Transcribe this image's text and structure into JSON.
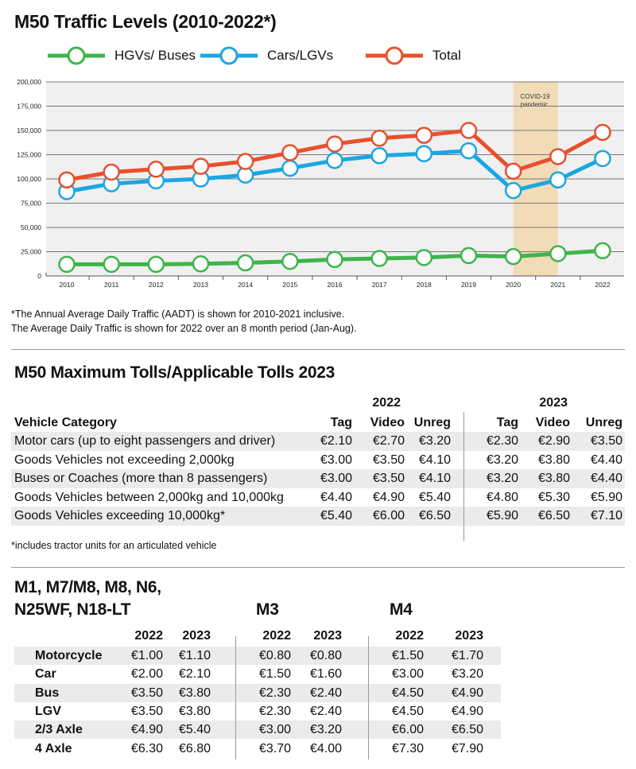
{
  "title": "M50 Traffic Levels (2010-2022*)",
  "colors": {
    "hgv": "#3db54a",
    "cars": "#1ba6e2",
    "total": "#e8502d",
    "plot_bg": "#f0f0f0",
    "covid_band": "#f2dcb8",
    "stripe": "#ebebeb"
  },
  "chart_data": {
    "type": "line",
    "title": "M50 Traffic Levels (2010-2022*)",
    "x": [
      2010,
      2011,
      2012,
      2013,
      2014,
      2015,
      2016,
      2017,
      2018,
      2019,
      2020,
      2021,
      2022
    ],
    "x_tick_labels": [
      "2010",
      "2011",
      "2012",
      "2013",
      "2014",
      "2015",
      "2016",
      "2017",
      "2018",
      "2019",
      "2020",
      "2021",
      "2022"
    ],
    "y_tick_labels": [
      "0",
      "25,000",
      "50,000",
      "75,000",
      "100,000",
      "125,000",
      "150,000",
      "175,000",
      "200,000"
    ],
    "ylim": [
      0,
      200000
    ],
    "grid": true,
    "legend_position": "top",
    "series": [
      {
        "name": "HGVs/ Buses",
        "color": "#3db54a",
        "values": [
          12000,
          12000,
          12000,
          12500,
          13500,
          15000,
          17000,
          18000,
          19000,
          21000,
          20000,
          23000,
          26000
        ]
      },
      {
        "name": "Cars/LGVs",
        "color": "#1ba6e2",
        "values": [
          87000,
          95000,
          98000,
          100000,
          104000,
          111000,
          119000,
          124000,
          126000,
          129000,
          88000,
          99000,
          121000
        ]
      },
      {
        "name": "Total",
        "color": "#e8502d",
        "values": [
          99000,
          107000,
          110000,
          113000,
          118000,
          127000,
          136000,
          142000,
          145000,
          150000,
          108000,
          123000,
          148000
        ]
      }
    ],
    "annotations": [
      {
        "text_line1": "COVID-19",
        "text_line2": "pandemic",
        "x_range": [
          2020,
          2021
        ]
      }
    ]
  },
  "footnote_lines": [
    "*The Annual Average Daily Traffic (AADT) is shown for 2010-2021 inclusive.",
    "The Average Daily Traffic is shown for 2022 over an 8 month period (Jan-Aug)."
  ],
  "m50_tolls": {
    "title": "M50 Maximum Tolls/Applicable Tolls 2023",
    "year_headers": [
      "2022",
      "2023"
    ],
    "category_header": "Vehicle Category",
    "sub_headers": [
      "Tag",
      "Video",
      "Unreg",
      "Tag",
      "Video",
      "Unreg"
    ],
    "rows": [
      {
        "category": "Motor cars (up to eight passengers and driver)",
        "values": [
          "€2.10",
          "€2.70",
          "€3.20",
          "€2.30",
          "€2.90",
          "€3.50"
        ]
      },
      {
        "category": "Goods Vehicles not exceeding 2,000kg",
        "values": [
          "€3.00",
          "€3.50",
          "€4.10",
          "€3.20",
          "€3.80",
          "€4.40"
        ]
      },
      {
        "category": "Buses or Coaches (more than 8 passengers)",
        "values": [
          "€3.00",
          "€3.50",
          "€4.10",
          "€3.20",
          "€3.80",
          "€4.40"
        ]
      },
      {
        "category": "Goods Vehicles between 2,000kg and 10,000kg",
        "values": [
          "€4.40",
          "€4.90",
          "€5.40",
          "€4.80",
          "€5.30",
          "€5.90"
        ]
      },
      {
        "category": "Goods Vehicles exceeding 10,000kg*",
        "values": [
          "€5.40",
          "€6.00",
          "€6.50",
          "€5.90",
          "€6.50",
          "€7.10"
        ]
      }
    ],
    "footnote": "*includes tractor units for an articulated vehicle"
  },
  "other_tolls": {
    "group_titles": [
      "M1, M7/M8, M8, N6,",
      "N25WF, N18-LT",
      "M3",
      "M4"
    ],
    "year_headers": [
      "2022",
      "2023",
      "2022",
      "2023",
      "2022",
      "2023"
    ],
    "rows": [
      {
        "category": "Motorcycle",
        "values": [
          "€1.00",
          "€1.10",
          "€0.80",
          "€0.80",
          "€1.50",
          "€1.70"
        ]
      },
      {
        "category": "Car",
        "values": [
          "€2.00",
          "€2.10",
          "€1.50",
          "€1.60",
          "€3.00",
          "€3.20"
        ]
      },
      {
        "category": "Bus",
        "values": [
          "€3.50",
          "€3.80",
          "€2.30",
          "€2.40",
          "€4.50",
          "€4.90"
        ]
      },
      {
        "category": "LGV",
        "values": [
          "€3.50",
          "€3.80",
          "€2.30",
          "€2.40",
          "€4.50",
          "€4.90"
        ]
      },
      {
        "category": "2/3 Axle",
        "values": [
          "€4.90",
          "€5.40",
          "€3.00",
          "€3.20",
          "€6.00",
          "€6.50"
        ]
      },
      {
        "category": "4 Axle",
        "values": [
          "€6.30",
          "€6.80",
          "€3.70",
          "€4.00",
          "€7.30",
          "€7.90"
        ]
      }
    ]
  }
}
